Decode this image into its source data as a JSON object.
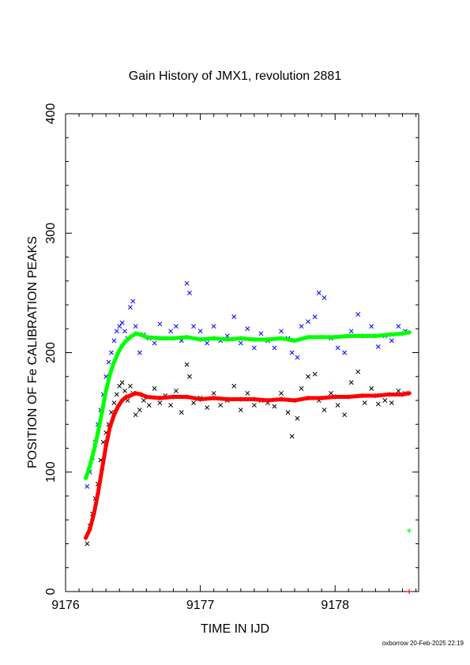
{
  "chart_data": {
    "type": "scatter",
    "title": "Gain History of JMX1, revolution 2881",
    "xlabel": "TIME IN IJD",
    "ylabel": "POSITION OF Fe CALIBRATION PEAKS",
    "xlim": [
      9176.0,
      9178.62
    ],
    "ylim": [
      0,
      400
    ],
    "xticks": [
      9176,
      9177,
      9178
    ],
    "yticks": [
      0,
      100,
      200,
      300,
      400
    ],
    "grid": false,
    "series": [
      {
        "color": "#0000ff",
        "marker": "x",
        "x": [
          9176.16,
          9176.18,
          9176.2,
          9176.22,
          9176.24,
          9176.26,
          9176.28,
          9176.3,
          9176.32,
          9176.34,
          9176.36,
          9176.38,
          9176.4,
          9176.42,
          9176.44,
          9176.46,
          9176.48,
          9176.5,
          9176.52,
          9176.55,
          9176.58,
          9176.62,
          9176.66,
          9176.7,
          9176.74,
          9176.78,
          9176.82,
          9176.86,
          9176.9,
          9176.92,
          9176.95,
          9177.0,
          9177.05,
          9177.1,
          9177.15,
          9177.2,
          9177.25,
          9177.3,
          9177.35,
          9177.4,
          9177.45,
          9177.5,
          9177.55,
          9177.6,
          9177.65,
          9177.68,
          9177.72,
          9177.75,
          9177.8,
          9177.85,
          9177.88,
          9177.92,
          9177.97,
          9178.02,
          9178.07,
          9178.12,
          9178.17,
          9178.22,
          9178.27,
          9178.32,
          9178.37,
          9178.42,
          9178.47,
          9178.52
        ],
        "y": [
          88,
          100,
          112,
          125,
          140,
          152,
          165,
          180,
          192,
          200,
          210,
          218,
          222,
          225,
          218,
          212,
          238,
          243,
          222,
          200,
          215,
          212,
          208,
          224,
          212,
          218,
          222,
          210,
          258,
          250,
          222,
          218,
          208,
          222,
          210,
          214,
          230,
          208,
          220,
          204,
          216,
          210,
          204,
          218,
          212,
          200,
          196,
          222,
          226,
          230,
          250,
          246,
          212,
          204,
          200,
          218,
          232,
          214,
          222,
          205,
          214,
          210,
          222,
          218
        ]
      },
      {
        "color": "#000000",
        "marker": "x",
        "x": [
          9176.16,
          9176.18,
          9176.2,
          9176.22,
          9176.24,
          9176.26,
          9176.28,
          9176.3,
          9176.32,
          9176.34,
          9176.36,
          9176.38,
          9176.4,
          9176.42,
          9176.44,
          9176.46,
          9176.48,
          9176.5,
          9176.52,
          9176.55,
          9176.58,
          9176.62,
          9176.66,
          9176.7,
          9176.74,
          9176.78,
          9176.82,
          9176.86,
          9176.9,
          9176.92,
          9176.95,
          9177.0,
          9177.05,
          9177.1,
          9177.15,
          9177.2,
          9177.25,
          9177.3,
          9177.35,
          9177.4,
          9177.45,
          9177.5,
          9177.55,
          9177.6,
          9177.65,
          9177.68,
          9177.72,
          9177.75,
          9177.8,
          9177.85,
          9177.88,
          9177.92,
          9177.97,
          9178.02,
          9178.07,
          9178.12,
          9178.17,
          9178.22,
          9178.27,
          9178.32,
          9178.37,
          9178.42,
          9178.47,
          9178.52
        ],
        "y": [
          40,
          55,
          65,
          78,
          90,
          110,
          125,
          133,
          140,
          150,
          158,
          165,
          172,
          175,
          168,
          160,
          172,
          166,
          148,
          152,
          160,
          156,
          170,
          158,
          164,
          156,
          168,
          150,
          190,
          180,
          158,
          162,
          154,
          166,
          156,
          160,
          172,
          152,
          166,
          156,
          160,
          158,
          155,
          166,
          150,
          130,
          145,
          170,
          180,
          182,
          160,
          152,
          166,
          156,
          148,
          175,
          184,
          158,
          170,
          157,
          160,
          158,
          168,
          166
        ]
      },
      {
        "color": "#00ff00",
        "marker": "+",
        "x": [
          9176.15,
          9176.18,
          9176.21,
          9176.24,
          9176.27,
          9176.3,
          9176.33,
          9176.36,
          9176.39,
          9176.42,
          9176.45,
          9176.48,
          9176.52,
          9176.56,
          9176.6,
          9176.7,
          9176.8,
          9176.9,
          9177.0,
          9177.1,
          9177.2,
          9177.3,
          9177.4,
          9177.5,
          9177.6,
          9177.7,
          9177.8,
          9177.9,
          9178.0,
          9178.1,
          9178.2,
          9178.3,
          9178.4,
          9178.5,
          9178.55
        ],
        "y": [
          95,
          105,
          118,
          133,
          150,
          168,
          182,
          192,
          200,
          206,
          210,
          213,
          216,
          215,
          213,
          212,
          212,
          213,
          211,
          212,
          211,
          212,
          211,
          211,
          212,
          210,
          213,
          213,
          213,
          214,
          214,
          214,
          215,
          216,
          217
        ]
      },
      {
        "color": "#ff0000",
        "marker": "+",
        "x": [
          9176.15,
          9176.18,
          9176.21,
          9176.24,
          9176.27,
          9176.3,
          9176.33,
          9176.36,
          9176.39,
          9176.42,
          9176.45,
          9176.48,
          9176.52,
          9176.56,
          9176.6,
          9176.7,
          9176.8,
          9176.9,
          9177.0,
          9177.1,
          9177.2,
          9177.3,
          9177.4,
          9177.5,
          9177.6,
          9177.7,
          9177.8,
          9177.9,
          9178.0,
          9178.1,
          9178.2,
          9178.3,
          9178.4,
          9178.5,
          9178.55
        ],
        "y": [
          45,
          52,
          65,
          82,
          102,
          122,
          138,
          148,
          155,
          160,
          163,
          164,
          166,
          165,
          163,
          162,
          163,
          163,
          161,
          162,
          161,
          161,
          161,
          160,
          161,
          160,
          162,
          162,
          163,
          163,
          164,
          164,
          165,
          165,
          166
        ]
      }
    ],
    "outliers": [
      {
        "color": "#00ff00",
        "marker": "+",
        "x": 9178.55,
        "y": 51
      },
      {
        "color": "#ff0000",
        "marker": "+",
        "x": 9178.55,
        "y": 0
      }
    ]
  },
  "footer": "oxborrow 20-Feb-2025 22:19"
}
